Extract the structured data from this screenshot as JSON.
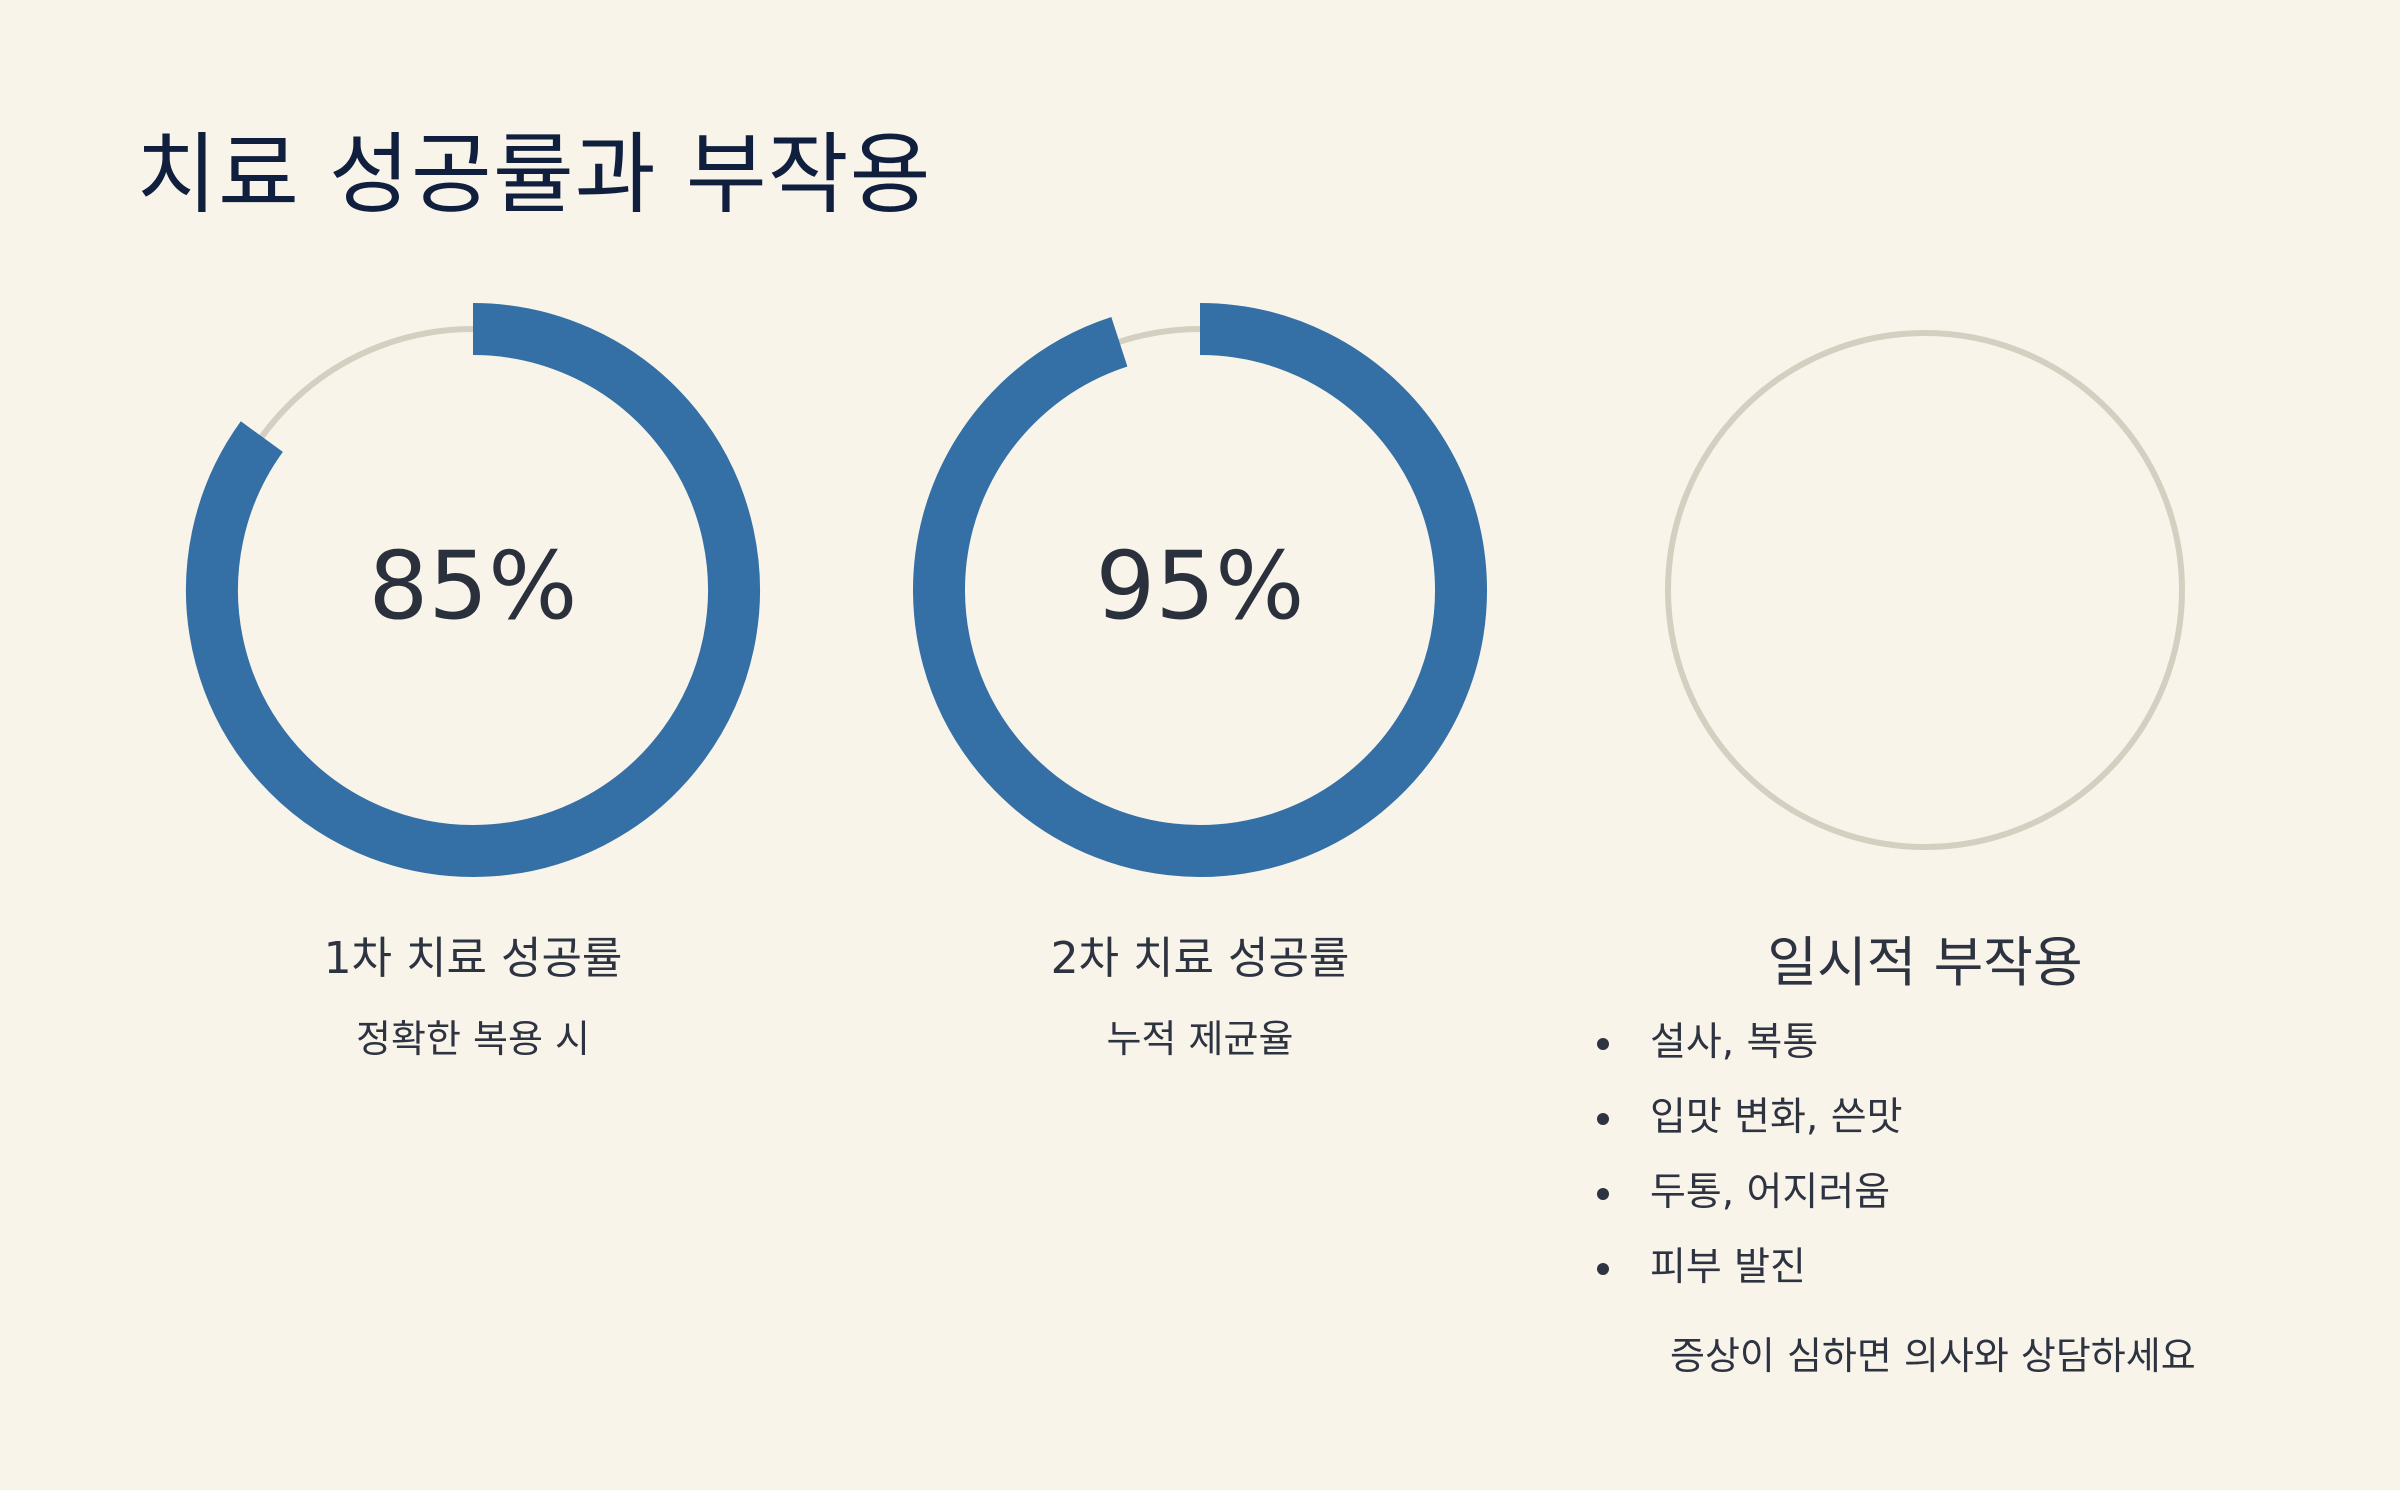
{
  "page": {
    "title": "치료 성공률과 부작용"
  },
  "colors": {
    "background": "#f9f4ea",
    "accent": "#3470a6",
    "track": "#d4cfc0",
    "title": "#0f1f3d",
    "text": "#2d3340"
  },
  "chart_data": [
    {
      "type": "donut",
      "value": 85,
      "max": 100,
      "value_label": "85%",
      "title": "1차 치료 성공률",
      "subtitle": "정확한 복용 시"
    },
    {
      "type": "donut",
      "value": 95,
      "max": 100,
      "value_label": "95%",
      "title": "2차 치료 성공률",
      "subtitle": "누적 제균율"
    }
  ],
  "side_effects": {
    "title": "일시적 부작용",
    "items": [
      "설사, 복통",
      "입맛 변화, 쓴맛",
      "두통, 어지러움",
      "피부 발진"
    ],
    "note": "증상이 심하면 의사와 상담하세요"
  }
}
